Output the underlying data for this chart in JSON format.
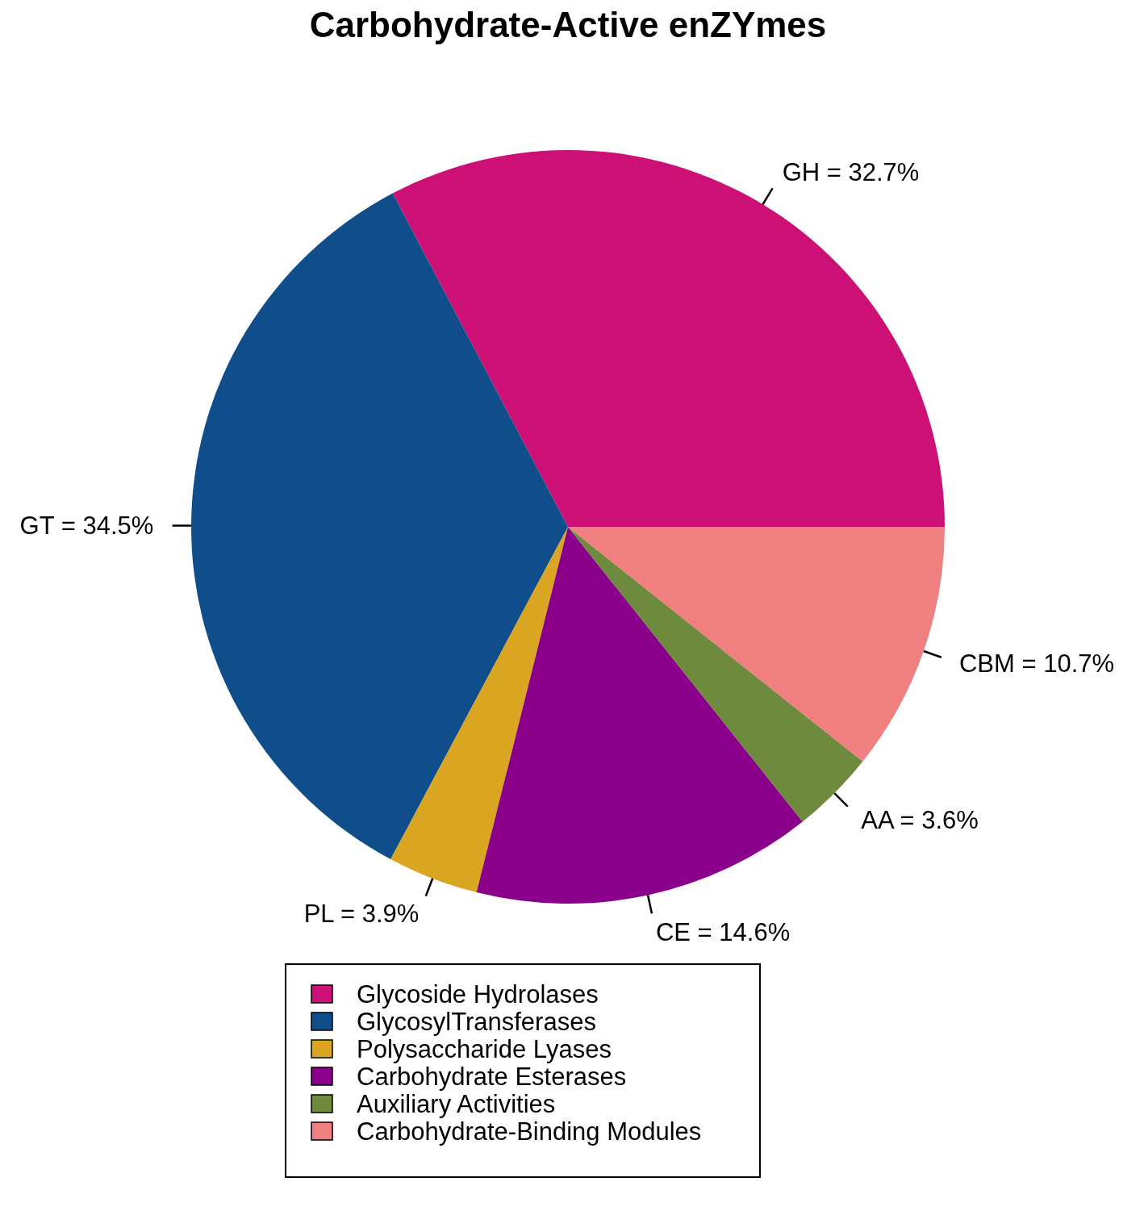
{
  "chart_data": {
    "type": "pie",
    "title": "Carbohydrate-Active enZYmes",
    "categories": [
      "Glycoside Hydrolases",
      "GlycosylTransferases",
      "Polysaccharide Lyases",
      "Carbohydrate Esterases",
      "Auxiliary Activities",
      "Carbohydrate-Binding Modules"
    ],
    "values": [
      32.7,
      34.5,
      3.9,
      14.6,
      3.6,
      10.7
    ],
    "value_labels": [
      "GH = 32.7%",
      "GT = 34.5%",
      "PL = 3.9%",
      "CE = 14.6%",
      "AA = 3.6%",
      "CBM = 10.7%"
    ],
    "colors": [
      "#cd1076",
      "#104e8b",
      "#daa520",
      "#8b008b",
      "#6e8b3d",
      "#f08080"
    ],
    "legend": "bottom"
  }
}
